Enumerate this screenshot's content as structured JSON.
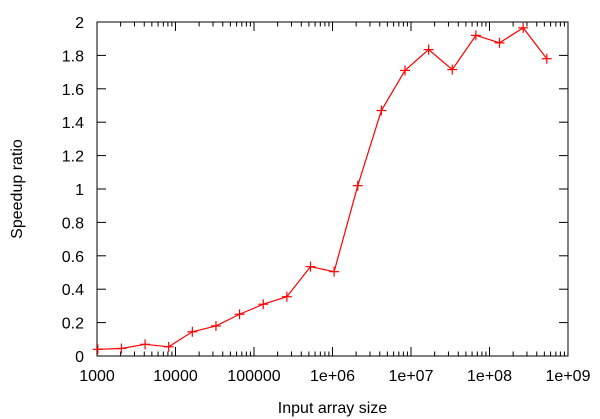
{
  "chart_data": {
    "type": "line",
    "title": "",
    "xlabel": "Input array size",
    "ylabel": "Speedup ratio",
    "x_scale": "log",
    "xlim": [
      1000,
      1000000000
    ],
    "ylim": [
      0,
      2
    ],
    "grid": false,
    "legend": "none",
    "x_ticks": [
      {
        "value": 1000,
        "label": "1000"
      },
      {
        "value": 10000,
        "label": "10000"
      },
      {
        "value": 100000,
        "label": "100000"
      },
      {
        "value": 1000000,
        "label": "1e+06"
      },
      {
        "value": 10000000,
        "label": "1e+07"
      },
      {
        "value": 100000000,
        "label": "1e+08"
      },
      {
        "value": 1000000000,
        "label": "1e+09"
      }
    ],
    "y_ticks": [
      {
        "value": 0,
        "label": "0"
      },
      {
        "value": 0.2,
        "label": "0.2"
      },
      {
        "value": 0.4,
        "label": "0.4"
      },
      {
        "value": 0.6,
        "label": "0.6"
      },
      {
        "value": 0.8,
        "label": "0.8"
      },
      {
        "value": 1,
        "label": "1"
      },
      {
        "value": 1.2,
        "label": "1.2"
      },
      {
        "value": 1.4,
        "label": "1.4"
      },
      {
        "value": 1.6,
        "label": "1.6"
      },
      {
        "value": 1.8,
        "label": "1.8"
      },
      {
        "value": 2,
        "label": "2"
      }
    ],
    "series": [
      {
        "color": "#ff0000",
        "marker": "plus",
        "x": [
          1024,
          2048,
          4096,
          8192,
          16384,
          32768,
          65536,
          131072,
          262144,
          524288,
          1048576,
          2097152,
          4194304,
          8388608,
          16777216,
          33554432,
          67108864,
          134217728,
          268435456,
          536870912
        ],
        "y": [
          0.04,
          0.045,
          0.07,
          0.055,
          0.145,
          0.18,
          0.25,
          0.31,
          0.355,
          0.535,
          0.505,
          1.02,
          1.47,
          1.71,
          1.835,
          1.715,
          1.92,
          1.875,
          1.965,
          1.78
        ]
      }
    ]
  }
}
